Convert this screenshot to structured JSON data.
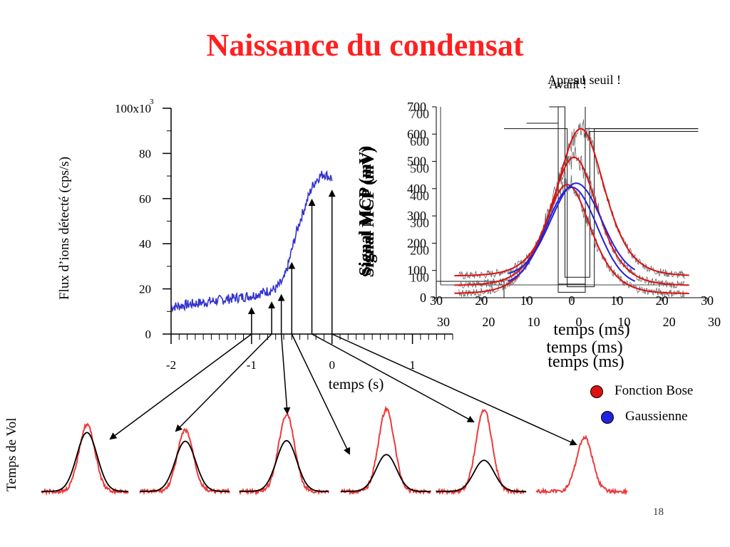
{
  "title": "Naissance du condensat",
  "page_number": "18",
  "colors": {
    "title": "#ff2020",
    "flux_line": "#3333cc",
    "bose": "#dd1111",
    "gauss": "#2222dd",
    "tof_signal": "#ee3a3a",
    "tof_fit": "#000000"
  },
  "tof_axis_label": "Temps de Vol",
  "legend": [
    {
      "label": "Fonction Bose",
      "color": "#dd1111"
    },
    {
      "label": "Gaussienne",
      "color": "#2222dd"
    }
  ],
  "chart_data": [
    {
      "type": "line",
      "ylabel": "Flux d’ions détecté (cps/s)",
      "xlabel": "temps (s)",
      "y_multiplier": "100x10",
      "y_multiplier_exp": "3",
      "xlim": [
        -2,
        1.5
      ],
      "ylim": [
        0,
        100
      ],
      "xticks": [
        {
          "v": -2,
          "label": "-2"
        },
        {
          "v": -1,
          "label": "-1"
        },
        {
          "v": 0,
          "label": "0"
        },
        {
          "v": 1,
          "label": "1"
        }
      ],
      "yticks": [
        {
          "v": 0,
          "label": "0"
        },
        {
          "v": 20,
          "label": "20"
        },
        {
          "v": 40,
          "label": "40"
        },
        {
          "v": 60,
          "label": "60"
        },
        {
          "v": 80,
          "label": "80"
        }
      ],
      "series": [
        {
          "x": [
            -2.0,
            -1.8,
            -1.6,
            -1.4,
            -1.2,
            -1.0,
            -0.9,
            -0.8,
            -0.7,
            -0.6,
            -0.55,
            -0.5,
            -0.45,
            -0.4,
            -0.35,
            -0.3,
            -0.25,
            -0.2,
            -0.15,
            -0.1,
            -0.05,
            0.0
          ],
          "y": [
            12,
            13,
            14,
            15,
            16,
            17,
            18,
            19,
            20,
            24,
            30,
            37,
            44,
            50,
            55,
            60,
            65,
            68,
            70,
            71,
            70,
            69
          ]
        }
      ],
      "arrows_x": [
        -1.0,
        -0.75,
        -0.63,
        -0.5,
        -0.25,
        0.0
      ]
    },
    {
      "type": "line",
      "ylabel": "Signal MCP (mV)",
      "xlabel": "temps (ms)",
      "annotations": [
        "Avant !",
        "Apres !",
        "au seuil !"
      ],
      "xlim": [
        -30,
        30
      ],
      "ylim": [
        0,
        700
      ],
      "xticks": [
        {
          "v": -30,
          "label": "30"
        },
        {
          "v": -20,
          "label": "20"
        },
        {
          "v": -10,
          "label": "10"
        },
        {
          "v": 0,
          "label": "0"
        },
        {
          "v": 10,
          "label": "10"
        },
        {
          "v": 20,
          "label": "20"
        },
        {
          "v": 30,
          "label": "30"
        }
      ],
      "yticks": [
        {
          "v": 0,
          "label": "0"
        },
        {
          "v": 100,
          "label": "100"
        },
        {
          "v": 200,
          "label": "200"
        },
        {
          "v": 300,
          "label": "300"
        },
        {
          "v": 400,
          "label": "400"
        },
        {
          "v": 500,
          "label": "500"
        },
        {
          "v": 600,
          "label": "600"
        },
        {
          "v": 700,
          "label": "700"
        }
      ],
      "series": [
        {
          "kind": "bose",
          "offset": 80,
          "amp": 540,
          "center": 2,
          "width": 7
        },
        {
          "kind": "bose",
          "offset": 45,
          "amp": 470,
          "center": 0.5,
          "width": 7
        },
        {
          "kind": "bose",
          "offset": 15,
          "amp": 400,
          "center": -1,
          "width": 7
        },
        {
          "kind": "gauss",
          "offset": 80,
          "amp": 340,
          "center": 1,
          "width": 7.5
        },
        {
          "kind": "gauss",
          "offset": 45,
          "amp": 360,
          "center": 0,
          "width": 7.5
        }
      ]
    },
    {
      "type": "line",
      "panels": [
        {
          "signal_amp": 1.0,
          "fit_amp": 0.88,
          "has_fit": true
        },
        {
          "signal_amp": 0.95,
          "fit_amp": 0.82,
          "has_fit": true
        },
        {
          "signal_amp": 1.0,
          "fit_amp": 0.66,
          "has_fit": true
        },
        {
          "signal_amp": 1.0,
          "fit_amp": 0.45,
          "has_fit": true
        },
        {
          "signal_amp": 1.0,
          "fit_amp": 0.38,
          "has_fit": true
        },
        {
          "signal_amp": 0.72,
          "fit_amp": 0,
          "has_fit": false
        }
      ]
    }
  ]
}
